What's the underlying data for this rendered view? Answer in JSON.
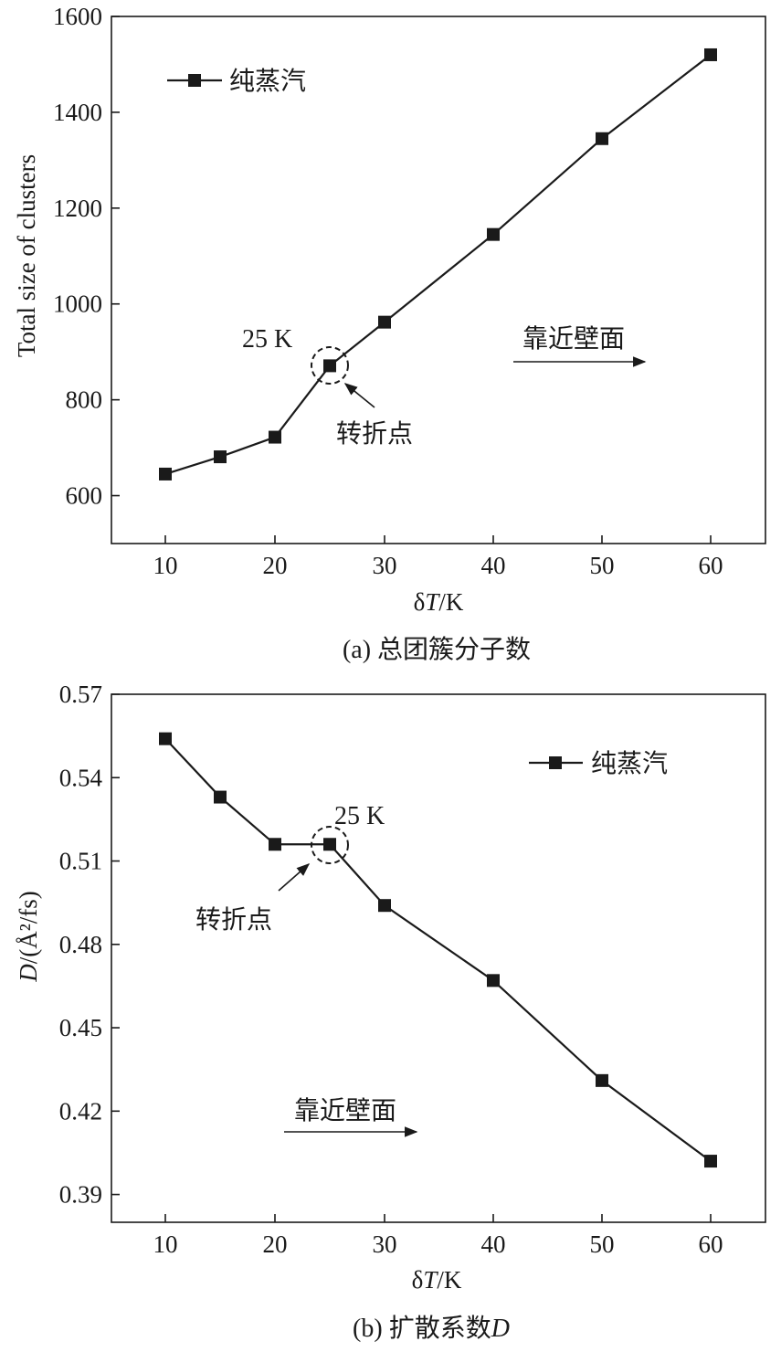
{
  "chart_data": [
    {
      "type": "line",
      "caption": "(a) 总团簇分子数",
      "xlabel_symbol": "δ",
      "xlabel_var": "T",
      "xlabel_unit": "/K",
      "ylabel": "Total size of clusters",
      "categories": [
        "10",
        "15",
        "20",
        "25",
        "30",
        "40",
        "50",
        "60"
      ],
      "x_ticks": [
        "10",
        "20",
        "30",
        "40",
        "50",
        "60"
      ],
      "y_ticks": [
        "600",
        "800",
        "1000",
        "1200",
        "1400",
        "1600"
      ],
      "ylim": [
        500,
        1600
      ],
      "series": [
        {
          "name": "纯蒸汽",
          "values": [
            645,
            681,
            722,
            871,
            962,
            1145,
            1345,
            1520
          ]
        }
      ],
      "legend": "top-left",
      "annotations": {
        "point_label": "25 K",
        "turn_label": "转折点",
        "arrow_label": "靠近壁面"
      }
    },
    {
      "type": "line",
      "caption_prefix": "(b) 扩散系数",
      "caption_var": "D",
      "xlabel_symbol": "δ",
      "xlabel_var": "T",
      "xlabel_unit": "/K",
      "ylabel_var": "D",
      "ylabel_unit": "/(Å²/fs)",
      "categories": [
        "10",
        "15",
        "20",
        "25",
        "30",
        "40",
        "50",
        "60"
      ],
      "x_ticks": [
        "10",
        "20",
        "30",
        "40",
        "50",
        "60"
      ],
      "y_ticks": [
        "0.39",
        "0.42",
        "0.45",
        "0.48",
        "0.51",
        "0.54",
        "0.57"
      ],
      "ylim": [
        0.38,
        0.57
      ],
      "series": [
        {
          "name": "纯蒸汽",
          "values": [
            0.554,
            0.533,
            0.516,
            0.516,
            0.494,
            0.467,
            0.431,
            0.402
          ]
        }
      ],
      "legend": "top-right",
      "annotations": {
        "point_label": "25 K",
        "turn_label": "转折点",
        "arrow_label": "靠近壁面"
      }
    }
  ]
}
